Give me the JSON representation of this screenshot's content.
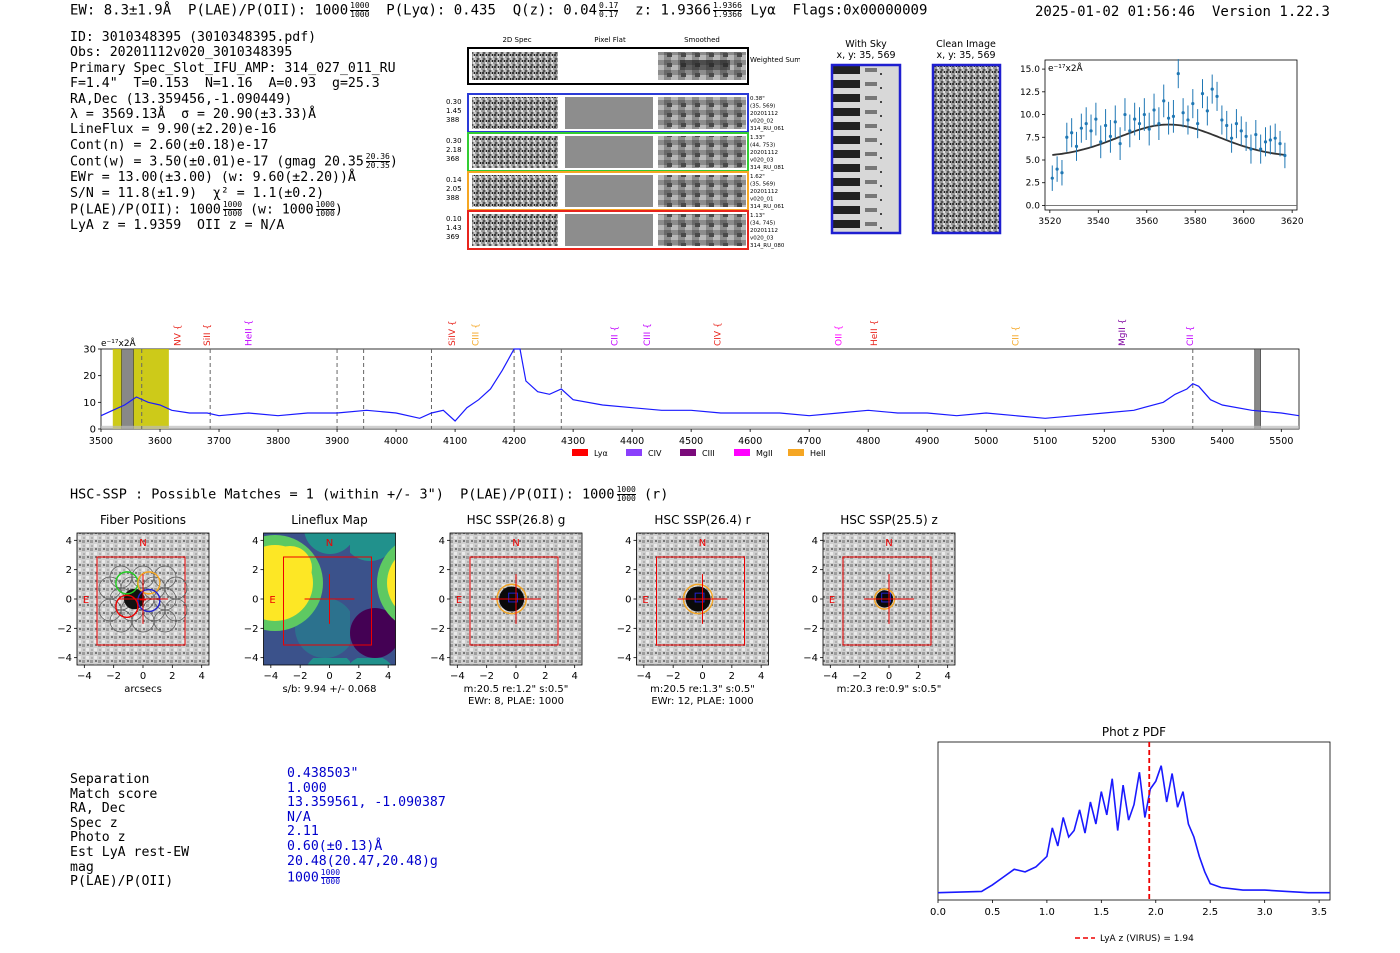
{
  "header": {
    "ew": "EW: 8.3±1.9Å",
    "plae_label": "P(LAE)/P(OII): 1000",
    "plae_sup": "1000",
    "plae_sub": "1000",
    "plya": "P(Lyα): 0.435",
    "qz_label": "Q(z): 0.04",
    "qz_sup": "0.17",
    "qz_sub": "0.17",
    "z_label": "z: 1.9366",
    "z_sup": "1.9366",
    "z_sub": "1.9366",
    "z_line": "Lyα",
    "flags": "Flags:0x00000009",
    "datetime": "2025-01-02 01:56:46",
    "version": "Version 1.22.3"
  },
  "info": {
    "id": "ID: 3010348395 (3010348395.pdf)",
    "obs": "Obs: 20201112v020_3010348395",
    "primary": "Primary Spec_Slot_IFU_AMP: 314_027_011_RU",
    "params": "F=1.4\"  T=0.153  N=1.16  A=0.93  g=25.3",
    "radec": "RA,Dec (13.359456,-1.090449)",
    "lambda": "λ = 3569.13Å  σ = 20.90(±3.33)Å",
    "lineflux": "LineFlux = 9.90(±2.20)e-16",
    "contn": "Cont(n) = 2.60(±0.18)e-17",
    "contw": "Cont(w) = 3.50(±0.01)e-17 (gmag 20.35",
    "contw_sup": "20.36",
    "contw_sub": "20.35",
    "ewr": "EWr = 13.00(±3.00) (w: 9.60(±2.20))Å",
    "sn": "S/N = 11.8(±1.9)  χ² = 1.1(±0.2)",
    "plae": "P(LAE)/P(OII): 1000",
    "plae_sup": "1000",
    "plae_sub": "1000",
    "plae_w": "(w: 1000",
    "plae_w_sup": "1000",
    "plae_w_sub": "1000",
    "lyaz": "LyA z = 1.9359  OII z = N/A"
  },
  "cutouts": {
    "col_titles": [
      "2D Spec",
      "Pixel Flat",
      "Smoothed"
    ],
    "weighted_label": "Weighted Sum",
    "rows": [
      {
        "stats": [
          "0.30",
          "1.45",
          "388"
        ],
        "meta": [
          "0.38\"",
          "(35, 569)",
          "20201112",
          "v020_02",
          "314_RU_061"
        ],
        "color": "#2a3ad6"
      },
      {
        "stats": [
          "0.30",
          "2.18",
          "368"
        ],
        "meta": [
          "1.33\"",
          "(44, 753)",
          "20201112",
          "v020_03",
          "314_RU_081"
        ],
        "color": "#33cc33"
      },
      {
        "stats": [
          "0.14",
          "2.05",
          "388"
        ],
        "meta": [
          "1.62\"",
          "(35, 569)",
          "20201112",
          "v020_01",
          "314_RU_061"
        ],
        "color": "#f5a623"
      },
      {
        "stats": [
          "0.10",
          "1.43",
          "369"
        ],
        "meta": [
          "1.13\"",
          "(34, 745)",
          "20201112",
          "v020_03",
          "314_RU_080"
        ],
        "color": "#e8241c"
      }
    ],
    "with_sky_title": "With Sky",
    "with_sky_xy": "x, y: 35, 569",
    "clean_title": "Clean Image",
    "clean_xy": "x, y: 35, 569"
  },
  "fit_chart": {
    "unit": "e⁻¹⁷x2Å",
    "x": [
      3521,
      3523,
      3525,
      3527,
      3529,
      3531,
      3533,
      3535,
      3537,
      3539,
      3541,
      3543,
      3545,
      3547,
      3549,
      3551,
      3553,
      3555,
      3557,
      3559,
      3561,
      3563,
      3565,
      3567,
      3569,
      3571,
      3573,
      3575,
      3577,
      3579,
      3581,
      3583,
      3585,
      3587,
      3589,
      3591,
      3593,
      3595,
      3597,
      3599,
      3601,
      3603,
      3605,
      3607,
      3609,
      3611,
      3613,
      3615,
      3617
    ],
    "y": [
      3.0,
      4.0,
      3.6,
      7.5,
      8.0,
      6.5,
      8.5,
      9.0,
      8.2,
      9.5,
      7.0,
      8.8,
      7.6,
      9.2,
      6.8,
      10.0,
      8.2,
      9.5,
      9.0,
      10.0,
      8.4,
      10.5,
      9.0,
      11.5,
      9.6,
      9.8,
      14.5,
      10.2,
      9.4,
      11.2,
      9.0,
      12.3,
      10.4,
      12.8,
      12.0,
      9.4,
      8.8,
      7.4,
      9.0,
      8.2,
      7.6,
      6.2,
      7.8,
      6.2,
      7.0,
      7.2,
      7.4,
      6.8,
      5.5
    ],
    "err": [
      1.4,
      1.4,
      1.4,
      1.6,
      1.6,
      1.6,
      1.6,
      1.8,
      1.8,
      1.8,
      1.8,
      1.8,
      1.8,
      1.8,
      1.8,
      1.8,
      1.8,
      1.8,
      1.8,
      1.8,
      1.8,
      1.8,
      1.8,
      1.8,
      1.8,
      1.8,
      1.6,
      1.6,
      1.6,
      1.6,
      1.6,
      1.6,
      1.6,
      1.6,
      1.6,
      1.6,
      1.6,
      1.6,
      1.6,
      1.6,
      1.6,
      1.6,
      1.6,
      1.6,
      1.6,
      1.6,
      1.6,
      1.4,
      1.4
    ],
    "fit": {
      "center": 3569.13,
      "sigma": 20.9,
      "amp": 3.6,
      "cont": 5.3
    },
    "xlim": [
      3518,
      3622
    ],
    "ylim": [
      -0.5,
      16
    ],
    "xticks": [
      "3520",
      "3540",
      "3560",
      "3580",
      "3600",
      "3620"
    ],
    "yticks": [
      "0.0",
      "2.5",
      "5.0",
      "7.5",
      "10.0",
      "12.5",
      "15.0"
    ]
  },
  "chart_data": [
    {
      "type": "line",
      "title": "Full spectrum",
      "ylabel": "e⁻¹⁷x2Å",
      "xlim": [
        3500,
        5530
      ],
      "ylim": [
        0,
        30
      ],
      "xticks": [
        "3500",
        "3600",
        "3700",
        "3800",
        "3900",
        "4000",
        "4100",
        "4200",
        "4300",
        "4400",
        "4500",
        "4600",
        "4700",
        "4800",
        "4900",
        "5000",
        "5100",
        "5200",
        "5300",
        "5400",
        "5500"
      ],
      "yticks": [
        "0",
        "10",
        "20",
        "30"
      ],
      "x": [
        3500,
        3520,
        3540,
        3560,
        3580,
        3600,
        3620,
        3650,
        3680,
        3700,
        3750,
        3800,
        3850,
        3900,
        3950,
        4000,
        4040,
        4060,
        4080,
        4100,
        4120,
        4140,
        4160,
        4180,
        4200,
        4210,
        4220,
        4240,
        4260,
        4280,
        4300,
        4350,
        4400,
        4450,
        4500,
        4550,
        4600,
        4650,
        4700,
        4750,
        4800,
        4850,
        4900,
        4950,
        5000,
        5050,
        5100,
        5150,
        5200,
        5250,
        5300,
        5320,
        5340,
        5350,
        5360,
        5380,
        5400,
        5450,
        5500,
        5530
      ],
      "y": [
        5,
        7,
        9,
        12,
        10,
        9,
        7,
        6,
        6,
        5,
        6,
        5,
        6,
        6,
        7,
        6,
        4,
        6,
        7,
        3,
        8,
        11,
        15,
        22,
        30,
        31,
        18,
        14,
        13,
        15,
        11,
        9,
        8,
        7,
        7,
        6,
        6,
        6,
        5,
        6,
        7,
        6,
        6,
        5,
        6,
        5,
        4,
        5,
        6,
        7,
        10,
        13,
        15,
        17,
        16,
        11,
        9,
        7,
        6,
        5
      ],
      "lines": [
        {
          "name": "NV",
          "x": 3635,
          "color": "#e8241c"
        },
        {
          "name": "SiII",
          "x": 3685,
          "color": "#e8241c"
        },
        {
          "name": "HeII",
          "x": 3755,
          "color": "#c000ff"
        },
        {
          "name": "SiIV",
          "x": 4100,
          "color": "#e8241c"
        },
        {
          "name": "CIII",
          "x": 4140,
          "color": "#f5a623"
        },
        {
          "name": "CII",
          "x": 4375,
          "color": "#c000ff"
        },
        {
          "name": "CIII",
          "x": 4430,
          "color": "#c000ff"
        },
        {
          "name": "CIV",
          "x": 4550,
          "color": "#e8241c"
        },
        {
          "name": "OII",
          "x": 4755,
          "color": "#ff00ff"
        },
        {
          "name": "HeII",
          "x": 4815,
          "color": "#e8241c"
        },
        {
          "name": "CII",
          "x": 5055,
          "color": "#f5a623"
        },
        {
          "name": "MgII",
          "x": 5235,
          "color": "#7f00a0"
        },
        {
          "name": "CII",
          "x": 5350,
          "color": "#c000ff"
        }
      ],
      "dashed": [
        3569,
        3685,
        3900,
        3945,
        4060,
        4200,
        4280,
        5350
      ],
      "highlight": [
        3520,
        3615
      ],
      "hatched": [
        [
          3535,
          3555
        ],
        [
          5455,
          5465
        ]
      ],
      "legend": [
        {
          "name": "Lyα",
          "color": "#ff0000"
        },
        {
          "name": "CIV",
          "color": "#8a3ffc"
        },
        {
          "name": "CIII",
          "color": "#7a0a7a"
        },
        {
          "name": "MgII",
          "color": "#ff00ff"
        },
        {
          "name": "HeII",
          "color": "#f5a623"
        }
      ]
    },
    {
      "type": "line",
      "title": "Phot z PDF",
      "xlim": [
        0.0,
        3.6
      ],
      "xticks": [
        "0.0",
        "0.5",
        "1.0",
        "1.5",
        "2.0",
        "2.5",
        "3.0",
        "3.5"
      ],
      "x": [
        0.0,
        0.4,
        0.5,
        0.6,
        0.7,
        0.8,
        0.9,
        1.0,
        1.05,
        1.1,
        1.15,
        1.2,
        1.25,
        1.3,
        1.35,
        1.4,
        1.45,
        1.5,
        1.55,
        1.6,
        1.65,
        1.7,
        1.75,
        1.8,
        1.85,
        1.9,
        1.95,
        2.0,
        2.05,
        2.1,
        2.15,
        2.2,
        2.25,
        2.3,
        2.35,
        2.4,
        2.45,
        2.5,
        2.6,
        2.8,
        3.0,
        3.2,
        3.4,
        3.6
      ],
      "y": [
        0.02,
        0.03,
        0.08,
        0.14,
        0.2,
        0.18,
        0.22,
        0.3,
        0.52,
        0.38,
        0.6,
        0.45,
        0.5,
        0.66,
        0.48,
        0.72,
        0.55,
        0.8,
        0.62,
        0.9,
        0.5,
        0.85,
        0.58,
        0.7,
        0.95,
        0.6,
        0.82,
        0.88,
        1.0,
        0.72,
        0.94,
        0.68,
        0.8,
        0.55,
        0.45,
        0.3,
        0.18,
        0.09,
        0.06,
        0.04,
        0.04,
        0.03,
        0.02,
        0.02
      ],
      "vline": 1.94,
      "legend": "LyA z (VIRUS) = 1.94"
    }
  ],
  "hsc": {
    "title": "HSC-SSP : Possible Matches = 1 (within +/- 3\")  P(LAE)/P(OII): 1000",
    "title_sup": "1000",
    "title_sub": "1000",
    "title_tail": "(r)",
    "panels": [
      {
        "title": "Fiber Positions",
        "caption": "arcsecs",
        "caption2": ""
      },
      {
        "title": "Lineflux Map",
        "caption": "s/b: 9.94 +/- 0.068",
        "caption2": ""
      },
      {
        "title": "HSC SSP(26.8) g",
        "caption": "m:20.5  re:1.2\"  s:0.5\"",
        "caption2": "EWr: 8, PLAE: 1000"
      },
      {
        "title": "HSC SSP(26.4) r",
        "caption": "m:20.5  re:1.3\"  s:0.5\"",
        "caption2": "EWr: 12, PLAE: 1000"
      },
      {
        "title": "HSC SSP(25.5) z",
        "caption": "m:20.3  re:0.9\"  s:0.5\"",
        "caption2": ""
      }
    ],
    "ticks": [
      "−4",
      "−2",
      "0",
      "2",
      "4"
    ],
    "north": "N",
    "east": "E"
  },
  "props": {
    "labels": [
      "Separation",
      "Match score",
      "RA, Dec",
      "Spec z",
      "Photo z",
      "Est LyA rest-EW",
      "mag",
      "P(LAE)/P(OII)"
    ],
    "values": [
      "0.438503\"",
      "1.000",
      "13.359561, -1.090387",
      "N/A",
      "2.11",
      "0.60(±0.13)Å",
      "20.48(20.47,20.48)g",
      "1000"
    ],
    "plae_sup": "1000",
    "plae_sub": "1000"
  }
}
